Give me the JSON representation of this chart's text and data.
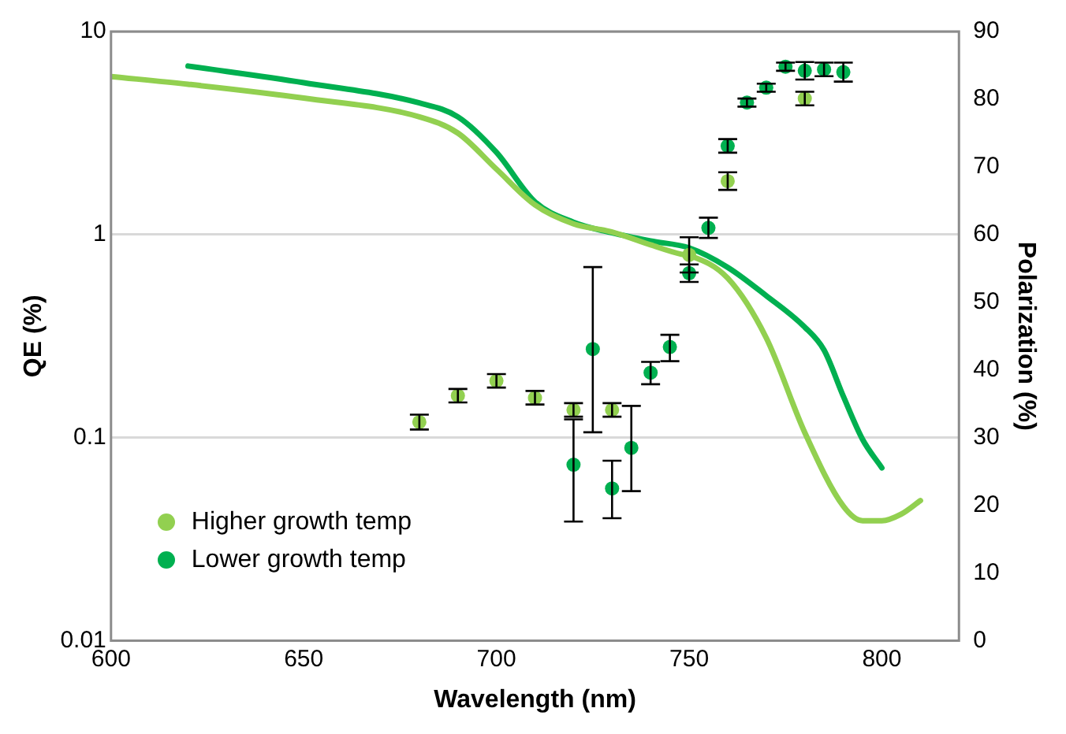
{
  "chart_data": {
    "type": "line",
    "xlabel": "Wavelength (nm)",
    "ylabel": "QE (%)",
    "y2label": "Polarization (%)",
    "xlim": [
      600,
      820
    ],
    "xticks": [
      600,
      650,
      700,
      750,
      800
    ],
    "ylim": [
      0.01,
      10
    ],
    "yticks": [
      0.01,
      0.1,
      1,
      10
    ],
    "log": "y",
    "y2lim": [
      0,
      90
    ],
    "y2ticks": [
      0,
      10,
      20,
      30,
      40,
      50,
      60,
      70,
      80,
      90
    ],
    "grid": "y",
    "legend": "bottom left",
    "series": [
      {
        "axis": "y",
        "color": "#92d050",
        "marker": "none",
        "x": [
          600,
          620,
          650,
          680,
          690,
          700,
          710,
          720,
          730,
          740,
          748,
          750,
          760,
          770,
          780,
          790,
          795,
          800,
          805,
          810
        ],
        "values": [
          6.0,
          5.5,
          4.7,
          3.8,
          3.16,
          2.1,
          1.4,
          1.13,
          1.03,
          0.89,
          0.8,
          0.79,
          0.61,
          0.31,
          0.106,
          0.046,
          0.039,
          0.039,
          0.042,
          0.049
        ]
      },
      {
        "axis": "y",
        "color": "#00b050",
        "marker": "none",
        "x": [
          620,
          650,
          680,
          690,
          700,
          710,
          720,
          730,
          740,
          750,
          760,
          770,
          780,
          785,
          790,
          795,
          800
        ],
        "values": [
          6.76,
          5.6,
          4.45,
          3.8,
          2.54,
          1.45,
          1.15,
          1.02,
          0.93,
          0.86,
          0.69,
          0.5,
          0.35,
          0.27,
          0.16,
          0.098,
          0.071
        ]
      },
      {
        "type": "scatter",
        "axis": "y2",
        "name": "Higher growth temp",
        "color": "#92d050",
        "marker": "circle",
        "x": [
          680,
          690,
          700,
          710,
          720,
          730,
          750,
          760,
          780
        ],
        "values": [
          32.3,
          36.2,
          38.4,
          35.9,
          34.1,
          34.1,
          57.0,
          67.9,
          80.1
        ],
        "errors": [
          1.1,
          1,
          1,
          1,
          1,
          1,
          2.6,
          1.3,
          1
        ]
      },
      {
        "type": "scatter",
        "axis": "y2",
        "name": "Lower growth temp",
        "color": "#00b050",
        "marker": "circle",
        "x": [
          720,
          725,
          730,
          735,
          740,
          745,
          750,
          755,
          760,
          765,
          770,
          775,
          780,
          785,
          790
        ],
        "values": [
          26.0,
          43.1,
          22.5,
          28.5,
          39.6,
          43.4,
          54.3,
          61.0,
          73.1,
          79.5,
          81.7,
          84.8,
          84.2,
          84.4,
          84.0
        ],
        "errors": [
          [
            17.6,
            32.7
          ],
          [
            30.8,
            55.2
          ],
          [
            18.1,
            26.6
          ],
          [
            22.1,
            34.7
          ],
          [
            37.9,
            41.2
          ],
          [
            41.3,
            45.2
          ],
          1.3,
          1.5,
          1,
          0.6,
          0.6,
          0.6,
          1.3,
          1,
          1.4
        ]
      }
    ]
  }
}
